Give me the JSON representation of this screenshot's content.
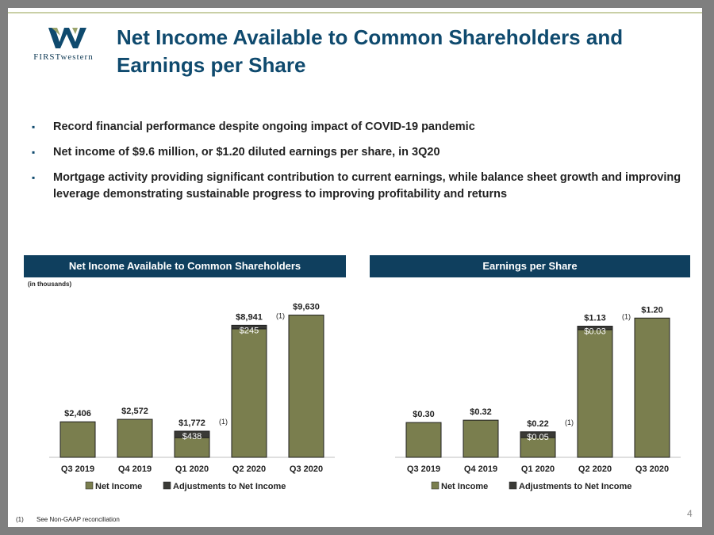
{
  "header": {
    "title": "Net Income Available to Common Shareholders and Earnings per Share",
    "logo_text": "FIRSTwestern"
  },
  "bullets": [
    "Record financial performance despite ongoing impact of COVID-19 pandemic",
    "Net income of $9.6 million, or $1.20 diluted earnings per share, in 3Q20",
    "Mortgage activity providing significant contribution to current earnings, while balance sheet growth and improving leverage demonstrating sustainable progress to improving profitability and returns"
  ],
  "colors": {
    "net_income": "#7a7e4e",
    "adjustments": "#3a3a36",
    "header_bg": "#0f3f5e",
    "title": "#0f4a6e"
  },
  "footnote": {
    "marker": "(1)",
    "text": "See Non-GAAP reconciliation"
  },
  "page_number": "4",
  "chart_data": [
    {
      "type": "bar",
      "stacked": true,
      "title": "Net Income Available to Common Shareholders",
      "units_note": "(in thousands)",
      "categories": [
        "Q3 2019",
        "Q4 2019",
        "Q1 2020",
        "Q2 2020",
        "Q3 2020"
      ],
      "series": [
        {
          "name": "Net Income",
          "values": [
            2406,
            2572,
            1334,
            8696,
            9630
          ]
        },
        {
          "name": "Adjustments to Net Income",
          "values": [
            0,
            0,
            438,
            245,
            0
          ]
        }
      ],
      "total_labels": [
        "$2,406",
        "$2,572",
        "$1,772",
        "$8,941",
        "$9,630"
      ],
      "adjustment_labels": [
        "",
        "",
        "$438",
        "$245",
        ""
      ],
      "footnote_markers": [
        "",
        "",
        "(1)",
        "(1)",
        ""
      ],
      "ylim": [
        0,
        11000
      ],
      "legend_position": "bottom",
      "grid": false
    },
    {
      "type": "bar",
      "stacked": true,
      "title": "Earnings per Share",
      "categories": [
        "Q3 2019",
        "Q4 2019",
        "Q1 2020",
        "Q2 2020",
        "Q3 2020"
      ],
      "series": [
        {
          "name": "Net Income",
          "values": [
            0.3,
            0.32,
            0.17,
            1.1,
            1.2
          ]
        },
        {
          "name": "Adjustments to Net Income",
          "values": [
            0,
            0,
            0.05,
            0.03,
            0
          ]
        }
      ],
      "total_labels": [
        "$0.30",
        "$0.32",
        "$0.22",
        "$1.13",
        "$1.20"
      ],
      "adjustment_labels": [
        "",
        "",
        "$0.05",
        "$0.03",
        ""
      ],
      "footnote_markers": [
        "",
        "",
        "(1)",
        "(1)",
        ""
      ],
      "ylim": [
        0,
        1.4
      ],
      "legend_position": "bottom",
      "grid": false
    }
  ]
}
